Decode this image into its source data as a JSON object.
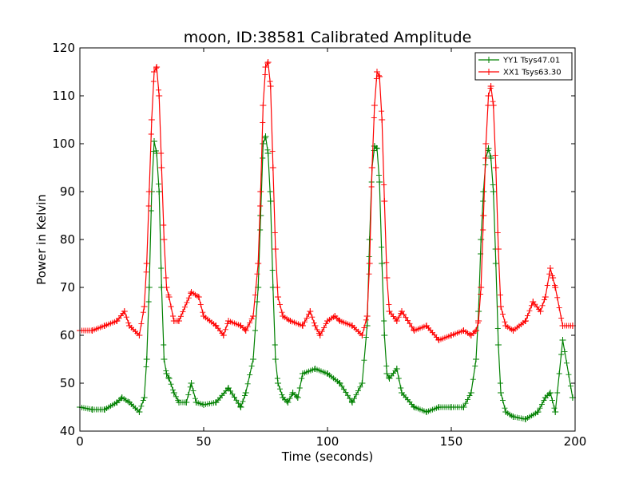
{
  "chart_data": {
    "type": "line",
    "title": "moon, ID:38581 Calibrated Amplitude",
    "xlabel": "Time (seconds)",
    "ylabel": "Power in Kelvin",
    "xlim": [
      0,
      200
    ],
    "ylim": [
      40,
      120
    ],
    "xticks": [
      0,
      50,
      100,
      150,
      200
    ],
    "yticks": [
      40,
      50,
      60,
      70,
      80,
      90,
      100,
      110,
      120
    ],
    "grid": false,
    "legend_position": "top-right",
    "marker": "plus",
    "series": [
      {
        "name": "YY1 Tsys47.01",
        "color": "#008000",
        "x": [
          0,
          5,
          10,
          15,
          17,
          20,
          24,
          26,
          27,
          28,
          29,
          30,
          31,
          32,
          33,
          34,
          35,
          36,
          38,
          40,
          43,
          45,
          47,
          50,
          55,
          60,
          65,
          67,
          70,
          72,
          73,
          74,
          75,
          76,
          77,
          78,
          79,
          80,
          82,
          84,
          86,
          88,
          90,
          95,
          100,
          105,
          110,
          114,
          116,
          117,
          118,
          119,
          120,
          121,
          122,
          123,
          124,
          125,
          128,
          130,
          135,
          140,
          145,
          150,
          155,
          158,
          160,
          161,
          162,
          163,
          164,
          165,
          166,
          167,
          168,
          169,
          170,
          172,
          175,
          180,
          185,
          188,
          190,
          192,
          195,
          199
        ],
        "y": [
          45,
          44.5,
          44.5,
          46,
          47,
          46,
          44,
          47,
          55,
          70,
          90,
          100.5,
          98,
          90,
          70,
          55,
          52,
          51,
          48,
          46,
          46,
          50,
          46,
          45.5,
          46,
          49,
          45,
          48,
          55,
          70,
          85,
          100,
          101.5,
          98,
          88,
          70,
          55,
          50,
          47,
          46,
          48,
          47,
          52,
          53,
          52,
          50,
          46,
          50,
          62,
          80,
          95,
          99.5,
          99,
          92,
          75,
          60,
          52,
          51,
          53,
          48,
          45,
          44,
          45,
          45,
          45,
          48,
          55,
          65,
          80,
          90,
          97,
          99,
          97,
          90,
          75,
          58,
          48,
          44,
          43,
          42.5,
          44,
          47,
          48,
          44,
          59,
          47
        ]
      },
      {
        "name": "XX1 Tsys63.30",
        "color": "#ff0000",
        "x": [
          0,
          5,
          10,
          15,
          18,
          20,
          24,
          26,
          27,
          28,
          29,
          30,
          31,
          32,
          33,
          34,
          35,
          36,
          38,
          40,
          45,
          48,
          50,
          55,
          58,
          60,
          65,
          67,
          70,
          72,
          73,
          74,
          75,
          76,
          77,
          78,
          79,
          80,
          82,
          85,
          90,
          93,
          95,
          97,
          100,
          103,
          105,
          110,
          114,
          116,
          117,
          118,
          119,
          120,
          121,
          122,
          123,
          124,
          125,
          128,
          130,
          135,
          140,
          145,
          150,
          155,
          158,
          160,
          161,
          162,
          163,
          164,
          165,
          166,
          167,
          168,
          169,
          170,
          172,
          175,
          180,
          183,
          186,
          188,
          190,
          191,
          192,
          195,
          199
        ],
        "y": [
          61,
          61,
          62,
          63,
          65,
          62,
          60,
          66,
          75,
          90,
          105,
          115,
          116,
          110,
          95,
          80,
          70,
          68,
          63,
          63,
          69,
          68,
          64,
          62,
          60,
          63,
          62,
          61,
          64,
          75,
          90,
          108,
          116,
          117,
          112,
          95,
          78,
          68,
          64,
          63,
          62,
          65,
          62,
          60,
          63,
          64,
          63,
          62,
          60,
          64,
          75,
          95,
          108,
          115,
          114,
          105,
          88,
          72,
          65,
          63,
          65,
          61,
          62,
          59,
          60,
          61,
          60,
          61,
          63,
          70,
          85,
          100,
          110,
          112,
          108,
          95,
          78,
          66,
          62,
          61,
          63,
          67,
          65,
          68,
          74,
          72,
          70,
          62,
          62
        ]
      }
    ]
  }
}
